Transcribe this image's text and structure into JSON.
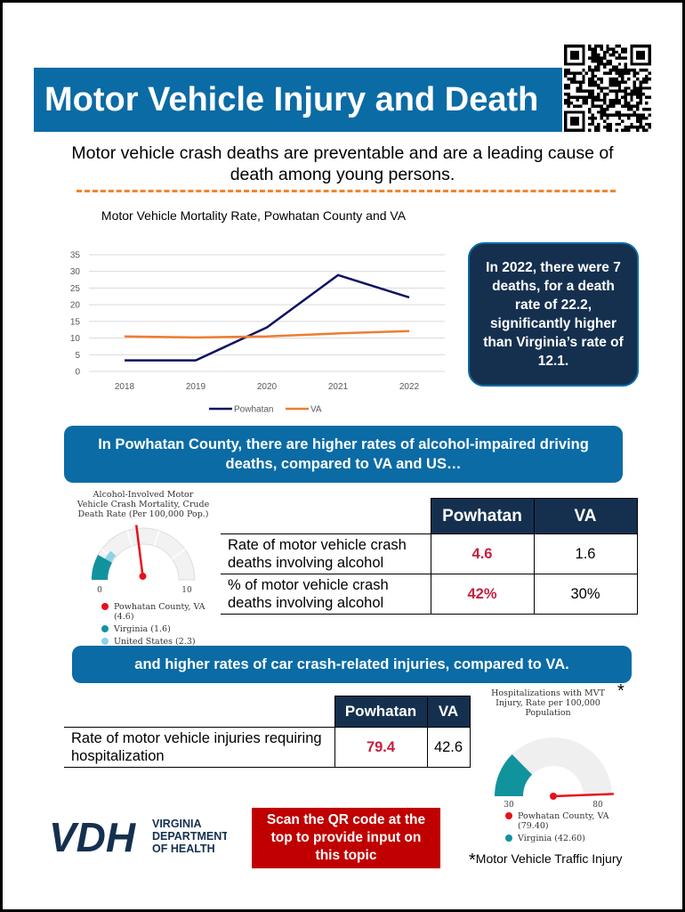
{
  "title": "Motor Vehicle Injury and Death",
  "intro": "Motor vehicle crash deaths are preventable and are a leading cause of death among young persons.",
  "callout": "In 2022, there were 7 deaths, for a death rate of 22.2, significantly higher than Virginia’s rate of 12.1.",
  "band1": "In Powhatan County, there are higher rates of alcohol-impaired driving deaths, compared to VA and US…",
  "band2": "and higher rates of car crash-related injuries, compared to VA.",
  "alcohol_table": {
    "headers": [
      "Powhatan",
      "VA"
    ],
    "rows": [
      {
        "label": "Rate of motor vehicle crash deaths involving alcohol",
        "powhatan": "4.6",
        "va": "1.6"
      },
      {
        "label": "% of motor vehicle crash deaths involving alcohol",
        "powhatan": "42%",
        "va": "30%"
      }
    ]
  },
  "injury_table": {
    "headers": [
      "Powhatan",
      "VA"
    ],
    "rows": [
      {
        "label": "Rate of motor vehicle injuries requiring hospitalization",
        "powhatan": "79.4",
        "va": "42.6"
      }
    ]
  },
  "vdh_logo": {
    "mark": "VDH",
    "line1": "VIRGINIA",
    "line2": "DEPARTMENT",
    "line3": "OF HEALTH"
  },
  "qr_cta": "Scan the QR code at the top to provide input on this topic",
  "footnote": {
    "star": "*",
    "text": "Motor Vehicle Traffic Injury"
  },
  "chart_data": [
    {
      "type": "line",
      "title": "Motor Vehicle Mortality Rate, Powhatan County and VA",
      "categories": [
        "2018",
        "2019",
        "2020",
        "2021",
        "2022"
      ],
      "series": [
        {
          "name": "Powhatan",
          "values": [
            3.3,
            3.3,
            13.2,
            28.9,
            22.2
          ],
          "color": "#0d1261"
        },
        {
          "name": "VA",
          "values": [
            10.5,
            10.2,
            10.5,
            11.4,
            12.1
          ],
          "color": "#ed7d31"
        }
      ],
      "ylim": [
        0,
        35
      ],
      "yticks": [
        0,
        5,
        10,
        15,
        20,
        25,
        30,
        35
      ],
      "legend": "bottom",
      "grid": true
    },
    {
      "type": "gauge",
      "title": "Alcohol-Involved Motor Vehicle Crash Mortality, Crude Death Rate (Per 100,000 Pop.)",
      "range": [
        0,
        10
      ],
      "range_labels": [
        "0",
        "10"
      ],
      "series": [
        {
          "name": "Powhatan County, VA",
          "label": "(4.6)",
          "value": 4.6,
          "color": "#e8101b"
        },
        {
          "name": "Virginia",
          "label": "(1.6)",
          "value": 1.6,
          "color": "#11939e"
        },
        {
          "name": "United States",
          "label": "(2.3)",
          "value": 2.3,
          "color": "#8fd2e6"
        }
      ]
    },
    {
      "type": "gauge",
      "title": "Hospitalizations with MVT Injury, Rate per 100,000 Population",
      "title_star": "*",
      "range": [
        30,
        80
      ],
      "range_labels": [
        "30",
        "80"
      ],
      "series": [
        {
          "name": "Powhatan County, VA",
          "label": "(79.40)",
          "value": 79.4,
          "color": "#e8101b"
        },
        {
          "name": "Virginia",
          "label": "(42.60)",
          "value": 42.6,
          "color": "#11939e"
        }
      ]
    }
  ]
}
